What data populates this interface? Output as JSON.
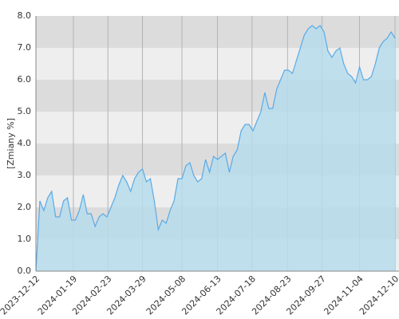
{
  "chart_data": {
    "type": "area",
    "y_label": "[Zmiany %]",
    "x": [
      "2023-12-12",
      "2023-12-16",
      "2023-12-20",
      "2023-12-24",
      "2023-12-28",
      "2024-01-01",
      "2024-01-05",
      "2024-01-09",
      "2024-01-13",
      "2024-01-17",
      "2024-01-21",
      "2024-01-25",
      "2024-01-29",
      "2024-02-02",
      "2024-02-06",
      "2024-02-10",
      "2024-02-14",
      "2024-02-18",
      "2024-02-22",
      "2024-02-26",
      "2024-03-01",
      "2024-03-05",
      "2024-03-09",
      "2024-03-13",
      "2024-03-17",
      "2024-03-21",
      "2024-03-25",
      "2024-03-29",
      "2024-04-02",
      "2024-04-06",
      "2024-04-10",
      "2024-04-14",
      "2024-04-18",
      "2024-04-22",
      "2024-04-26",
      "2024-04-30",
      "2024-05-04",
      "2024-05-08",
      "2024-05-12",
      "2024-05-16",
      "2024-05-20",
      "2024-05-24",
      "2024-05-28",
      "2024-06-01",
      "2024-06-05",
      "2024-06-09",
      "2024-06-13",
      "2024-06-17",
      "2024-06-21",
      "2024-06-25",
      "2024-06-29",
      "2024-07-03",
      "2024-07-07",
      "2024-07-11",
      "2024-07-15",
      "2024-07-19",
      "2024-07-23",
      "2024-07-27",
      "2024-07-31",
      "2024-08-04",
      "2024-08-08",
      "2024-08-12",
      "2024-08-16",
      "2024-08-20",
      "2024-08-24",
      "2024-08-28",
      "2024-09-01",
      "2024-09-05",
      "2024-09-09",
      "2024-09-13",
      "2024-09-17",
      "2024-09-21",
      "2024-09-25",
      "2024-09-29",
      "2024-10-03",
      "2024-10-07",
      "2024-10-11",
      "2024-10-15",
      "2024-10-19",
      "2024-10-23",
      "2024-10-27",
      "2024-10-31",
      "2024-11-04",
      "2024-11-08",
      "2024-11-12",
      "2024-11-16",
      "2024-11-20",
      "2024-11-24",
      "2024-11-28",
      "2024-12-02",
      "2024-12-06",
      "2024-12-10"
    ],
    "values": [
      0.0,
      2.2,
      1.9,
      2.3,
      2.5,
      1.7,
      1.7,
      2.2,
      2.3,
      1.6,
      1.6,
      1.9,
      2.4,
      1.8,
      1.8,
      1.4,
      1.7,
      1.8,
      1.7,
      2.0,
      2.3,
      2.7,
      3.0,
      2.8,
      2.5,
      2.9,
      3.1,
      3.2,
      2.8,
      2.9,
      2.2,
      1.3,
      1.6,
      1.5,
      1.9,
      2.2,
      2.9,
      2.9,
      3.3,
      3.4,
      3.0,
      2.8,
      2.9,
      3.5,
      3.1,
      3.6,
      3.5,
      3.6,
      3.7,
      3.1,
      3.6,
      3.8,
      4.4,
      4.6,
      4.6,
      4.4,
      4.7,
      5.0,
      5.6,
      5.1,
      5.1,
      5.7,
      6.0,
      6.3,
      6.3,
      6.2,
      6.6,
      7.0,
      7.4,
      7.6,
      7.7,
      7.6,
      7.7,
      7.5,
      6.9,
      6.7,
      6.9,
      7.0,
      6.5,
      6.2,
      6.1,
      5.9,
      6.4,
      6.0,
      6.0,
      6.1,
      6.5,
      7.0,
      7.2,
      7.3,
      7.5,
      7.3
    ],
    "line_color": "#5aaae6",
    "fill_color": "#b6dcec",
    "band_colors": [
      "#eeeeee",
      "#dcdcdc"
    ],
    "xlim": [
      "2023-12-12",
      "2024-12-14"
    ],
    "xticks": [
      "2023-12-12",
      "2024-01-19",
      "2024-02-23",
      "2024-03-29",
      "2024-05-08",
      "2024-06-13",
      "2024-07-18",
      "2024-08-23",
      "2024-09-27",
      "2024-11-04",
      "2024-12-10"
    ],
    "ylim": [
      0,
      8
    ],
    "yticks": [
      {
        "value": 0,
        "label": "0.0"
      },
      {
        "value": 1,
        "label": "1.0"
      },
      {
        "value": 2,
        "label": "2.0"
      },
      {
        "value": 3,
        "label": "3.0"
      },
      {
        "value": 4,
        "label": "4.0"
      },
      {
        "value": 5,
        "label": "5.0"
      },
      {
        "value": 6,
        "label": "6.0"
      },
      {
        "value": 7,
        "label": "7.0"
      },
      {
        "value": 8,
        "label": "8.0"
      }
    ],
    "grid": true
  }
}
